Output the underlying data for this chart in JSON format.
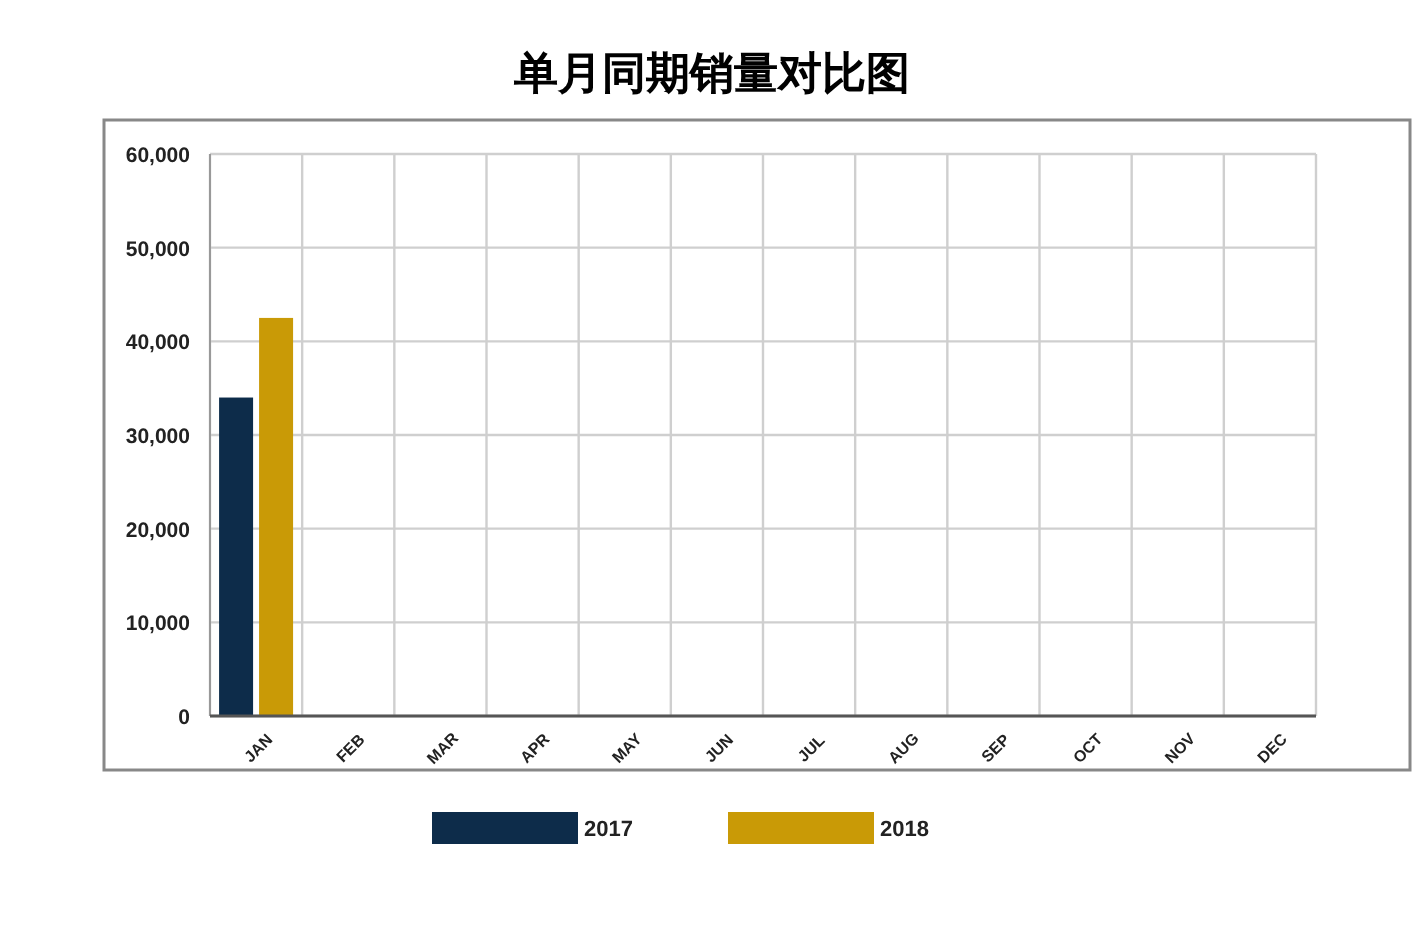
{
  "chart_data": {
    "type": "bar",
    "title": "单月同期销量对比图",
    "categories": [
      "JAN",
      "FEB",
      "MAR",
      "APR",
      "MAY",
      "JUN",
      "JUL",
      "AUG",
      "SEP",
      "OCT",
      "NOV",
      "DEC"
    ],
    "series": [
      {
        "name": "2017",
        "color": "#0d2c4a",
        "values": [
          34000,
          null,
          null,
          null,
          null,
          null,
          null,
          null,
          null,
          null,
          null,
          null
        ]
      },
      {
        "name": "2018",
        "color": "#c99a06",
        "values": [
          42500,
          null,
          null,
          null,
          null,
          null,
          null,
          null,
          null,
          null,
          null,
          null
        ]
      }
    ],
    "ylim": [
      0,
      60000
    ],
    "yticks": [
      {
        "value": 0,
        "label": "0"
      },
      {
        "value": 10000,
        "label": "10,000"
      },
      {
        "value": 20000,
        "label": "20,000"
      },
      {
        "value": 30000,
        "label": "30,000"
      },
      {
        "value": 40000,
        "label": "40,000"
      },
      {
        "value": 50000,
        "label": "50,000"
      },
      {
        "value": 60000,
        "label": "60,000"
      }
    ],
    "grid": true,
    "legend": "bottom"
  }
}
